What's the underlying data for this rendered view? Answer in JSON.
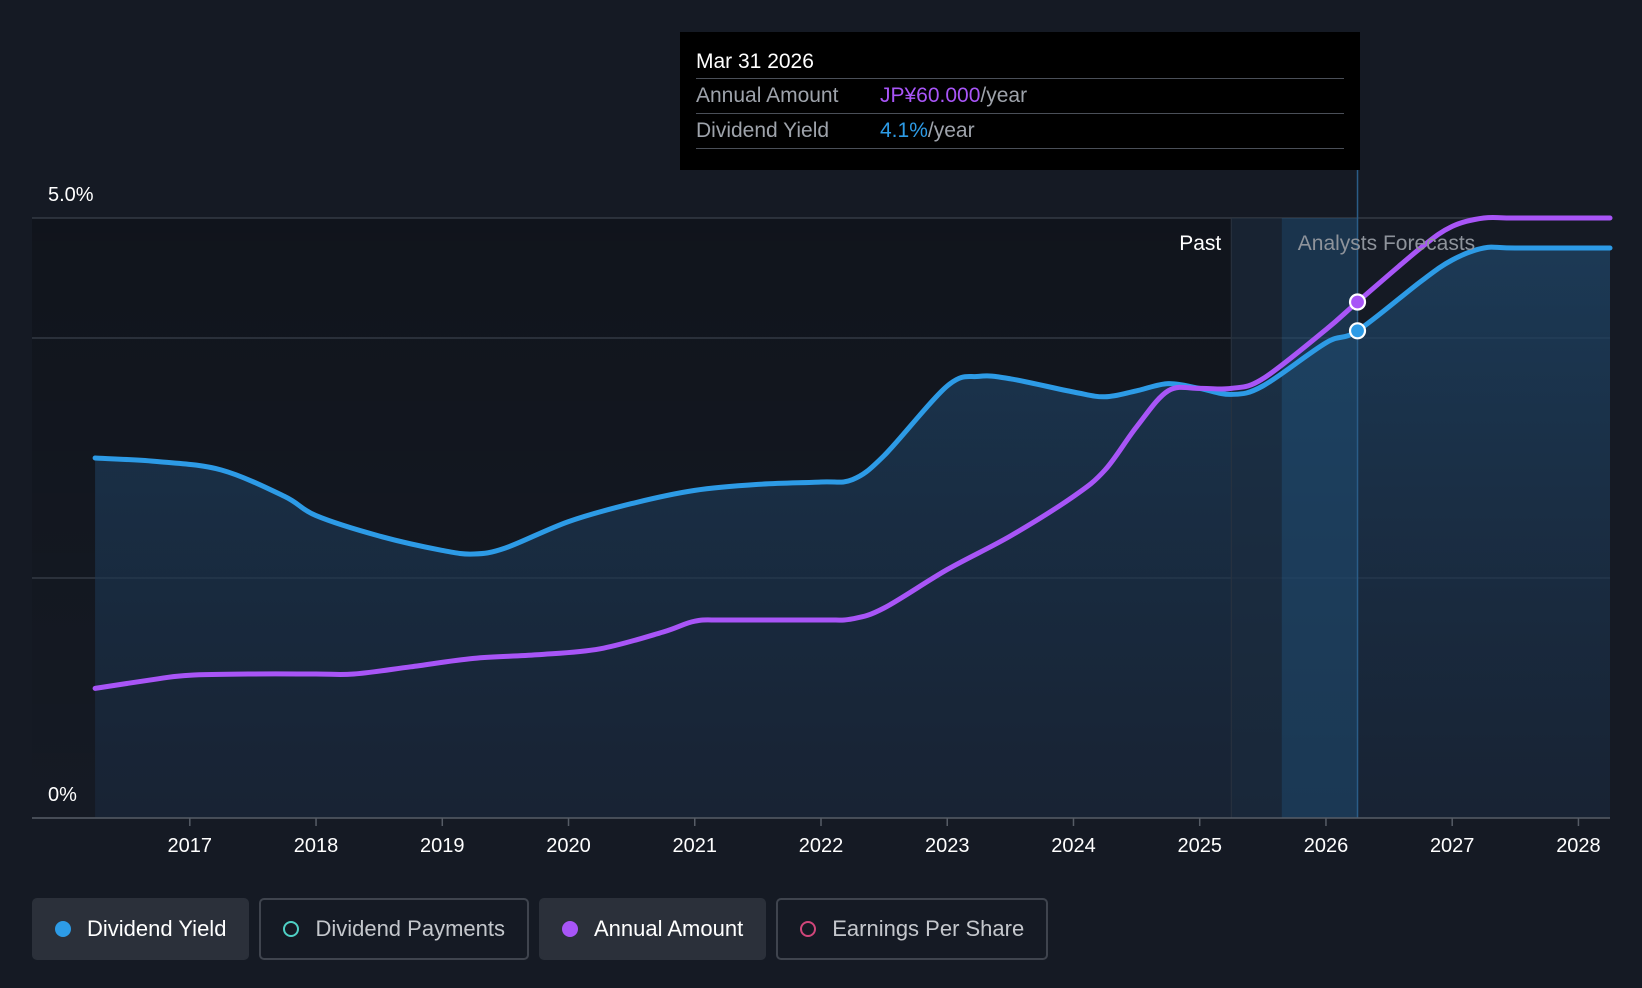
{
  "chart_data": {
    "type": "line",
    "title": "",
    "x_start": 2016.25,
    "x_end": 2028.25,
    "xlim": [
      2015.75,
      2028.25
    ],
    "ylim": [
      0,
      5.0
    ],
    "y_labels": [
      {
        "value": 5.0,
        "label": "5.0%"
      },
      {
        "value": 0,
        "label": "0%"
      }
    ],
    "gridlines": [
      5.0,
      4.0,
      2.0
    ],
    "x_ticks": [
      {
        "value": 2017,
        "label": "2017"
      },
      {
        "value": 2018,
        "label": "2018"
      },
      {
        "value": 2019,
        "label": "2019"
      },
      {
        "value": 2020,
        "label": "2020"
      },
      {
        "value": 2021,
        "label": "2021"
      },
      {
        "value": 2022,
        "label": "2022"
      },
      {
        "value": 2023,
        "label": "2023"
      },
      {
        "value": 2024,
        "label": "2024"
      },
      {
        "value": 2025,
        "label": "2025"
      },
      {
        "value": 2026,
        "label": "2026"
      },
      {
        "value": 2027,
        "label": "2027"
      },
      {
        "value": 2028,
        "label": "2028"
      }
    ],
    "past_forecast_split": 2025.25,
    "forecast_band_start": 2025.65,
    "cursor_x": 2026.25,
    "past_label": "Past",
    "forecast_label": "Analysts Forecasts",
    "series": [
      {
        "name": "Dividend Yield",
        "color": "#2d9be6",
        "filled": true,
        "points": [
          [
            2016.25,
            3.0
          ],
          [
            2016.75,
            2.97
          ],
          [
            2017.25,
            2.9
          ],
          [
            2017.75,
            2.68
          ],
          [
            2018.0,
            2.52
          ],
          [
            2018.5,
            2.35
          ],
          [
            2019.0,
            2.23
          ],
          [
            2019.25,
            2.2
          ],
          [
            2019.5,
            2.25
          ],
          [
            2020.0,
            2.47
          ],
          [
            2020.5,
            2.62
          ],
          [
            2021.0,
            2.73
          ],
          [
            2021.5,
            2.78
          ],
          [
            2022.0,
            2.8
          ],
          [
            2022.25,
            2.82
          ],
          [
            2022.5,
            3.02
          ],
          [
            2023.0,
            3.6
          ],
          [
            2023.25,
            3.68
          ],
          [
            2023.5,
            3.66
          ],
          [
            2024.0,
            3.55
          ],
          [
            2024.25,
            3.51
          ],
          [
            2024.5,
            3.56
          ],
          [
            2024.75,
            3.62
          ],
          [
            2025.0,
            3.58
          ],
          [
            2025.25,
            3.53
          ],
          [
            2025.5,
            3.6
          ],
          [
            2026.0,
            3.96
          ],
          [
            2026.25,
            4.06
          ],
          [
            2026.75,
            4.47
          ],
          [
            2027.0,
            4.65
          ],
          [
            2027.25,
            4.75
          ],
          [
            2027.5,
            4.75
          ],
          [
            2028.25,
            4.75
          ]
        ]
      },
      {
        "name": "Annual Amount",
        "color": "#a855f7",
        "filled": false,
        "points": [
          [
            2016.25,
            1.08
          ],
          [
            2016.75,
            1.16
          ],
          [
            2017.0,
            1.19
          ],
          [
            2017.5,
            1.2
          ],
          [
            2018.0,
            1.2
          ],
          [
            2018.3,
            1.2
          ],
          [
            2018.75,
            1.26
          ],
          [
            2019.25,
            1.33
          ],
          [
            2019.75,
            1.36
          ],
          [
            2020.25,
            1.41
          ],
          [
            2020.75,
            1.55
          ],
          [
            2021.0,
            1.64
          ],
          [
            2021.25,
            1.65
          ],
          [
            2022.0,
            1.65
          ],
          [
            2022.25,
            1.66
          ],
          [
            2022.5,
            1.75
          ],
          [
            2023.0,
            2.07
          ],
          [
            2023.5,
            2.35
          ],
          [
            2024.0,
            2.68
          ],
          [
            2024.25,
            2.9
          ],
          [
            2024.5,
            3.26
          ],
          [
            2024.75,
            3.56
          ],
          [
            2025.0,
            3.58
          ],
          [
            2025.25,
            3.58
          ],
          [
            2025.5,
            3.66
          ],
          [
            2026.0,
            4.07
          ],
          [
            2026.25,
            4.3
          ],
          [
            2026.75,
            4.75
          ],
          [
            2027.0,
            4.93
          ],
          [
            2027.25,
            5.0
          ],
          [
            2027.5,
            5.0
          ],
          [
            2028.25,
            5.0
          ]
        ]
      }
    ],
    "markers": [
      {
        "series": "Annual Amount",
        "x": 2026.25,
        "y": 4.3,
        "color": "#a855f7"
      },
      {
        "series": "Dividend Yield",
        "x": 2026.25,
        "y": 4.06,
        "color": "#2d9be6"
      }
    ]
  },
  "tooltip": {
    "date": "Mar 31 2026",
    "rows": [
      {
        "key": "Annual Amount",
        "value": "JP¥60.000",
        "unit": "/year",
        "color": "#a855f7"
      },
      {
        "key": "Dividend Yield",
        "value": "4.1%",
        "unit": "/year",
        "color": "#2d9be6"
      }
    ]
  },
  "legend": [
    {
      "label": "Dividend Yield",
      "color": "#2d9be6",
      "active": true,
      "filled": true
    },
    {
      "label": "Dividend Payments",
      "color": "#4fd1c5",
      "active": false,
      "filled": false
    },
    {
      "label": "Annual Amount",
      "color": "#a855f7",
      "active": true,
      "filled": true
    },
    {
      "label": "Earnings Per Share",
      "color": "#d0467a",
      "active": false,
      "filled": false
    }
  ]
}
